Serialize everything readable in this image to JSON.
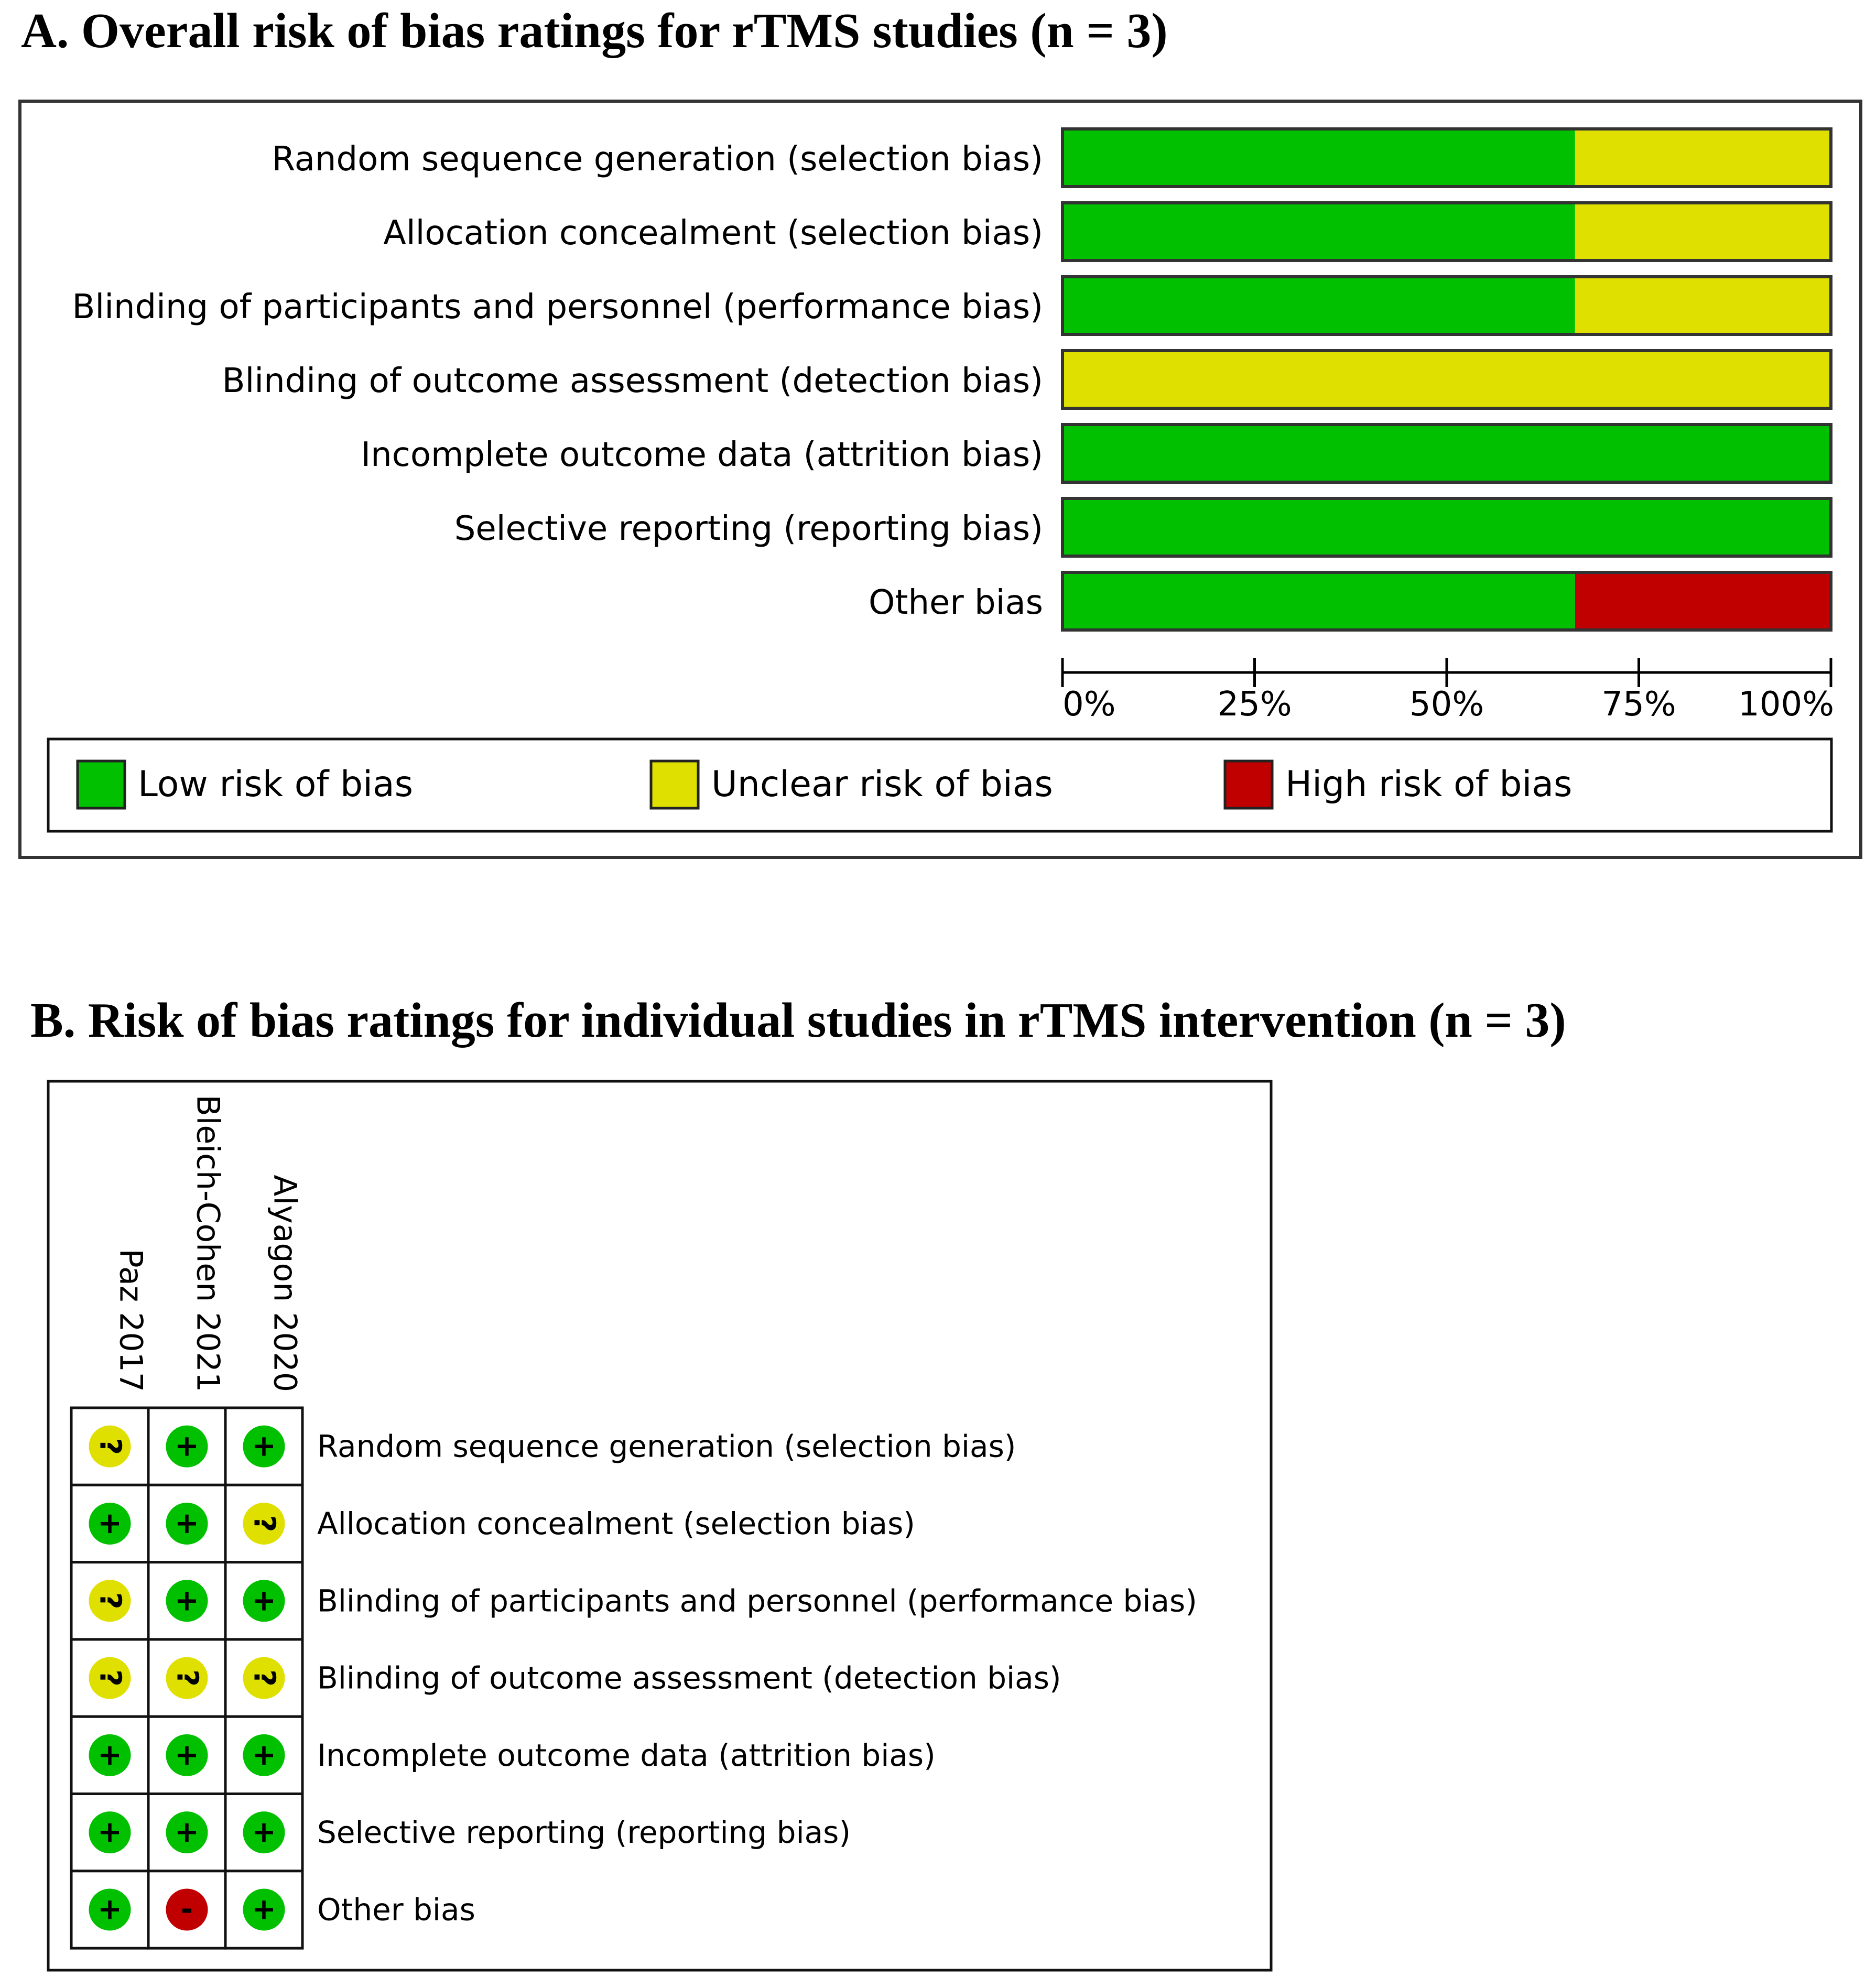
{
  "panel_a": {
    "title": "A.  Overall risk of bias ratings for rTMS studies (n = 3)"
  },
  "panel_b": {
    "title": "B.  Risk of bias ratings for individual studies in rTMS intervention (n = 3)"
  },
  "legend": [
    {
      "label": "Low risk of bias",
      "color": "#00c000",
      "key": "low"
    },
    {
      "label": "Unclear risk of bias",
      "color": "#e0e000",
      "key": "unclear"
    },
    {
      "label": "High risk of bias",
      "color": "#c00000",
      "key": "high"
    }
  ],
  "chart_data": [
    {
      "type": "bar",
      "orientation": "horizontal",
      "stacked": true,
      "categories": [
        "Random sequence generation (selection bias)",
        "Allocation concealment (selection bias)",
        "Blinding of participants and personnel (performance bias)",
        "Blinding of outcome assessment (detection bias)",
        "Incomplete outcome data (attrition bias)",
        "Selective reporting (reporting bias)",
        "Other bias"
      ],
      "series": [
        {
          "name": "Low risk of bias",
          "color": "#00c000",
          "values": [
            66.7,
            66.7,
            66.7,
            0,
            100,
            100,
            66.7
          ]
        },
        {
          "name": "Unclear risk of bias",
          "color": "#e0e000",
          "values": [
            33.3,
            33.3,
            33.3,
            100,
            0,
            0,
            0
          ]
        },
        {
          "name": "High risk of bias",
          "color": "#c00000",
          "values": [
            0,
            0,
            0,
            0,
            0,
            0,
            33.3
          ]
        }
      ],
      "xlim": [
        0,
        100
      ],
      "xticks": [
        0,
        25,
        50,
        75,
        100
      ],
      "xtick_labels": [
        "0%",
        "25%",
        "50%",
        "75%",
        "100%"
      ],
      "legend_position": "bottom"
    },
    {
      "type": "table",
      "studies": [
        "Paz 2017",
        "Bleich-Cohen 2021",
        "Alyagon 2020"
      ],
      "domains": [
        "Random sequence generation (selection bias)",
        "Allocation concealment (selection bias)",
        "Blinding of participants and personnel (performance bias)",
        "Blinding of outcome assessment (detection bias)",
        "Incomplete outcome data (attrition bias)",
        "Selective reporting (reporting bias)",
        "Other bias"
      ],
      "ratings": [
        [
          "unclear",
          "low",
          "low"
        ],
        [
          "low",
          "low",
          "unclear"
        ],
        [
          "unclear",
          "low",
          "low"
        ],
        [
          "unclear",
          "unclear",
          "unclear"
        ],
        [
          "low",
          "low",
          "low"
        ],
        [
          "low",
          "low",
          "low"
        ],
        [
          "low",
          "high",
          "low"
        ]
      ],
      "symbols": {
        "low": "+",
        "unclear": "?",
        "high": "-"
      }
    }
  ]
}
